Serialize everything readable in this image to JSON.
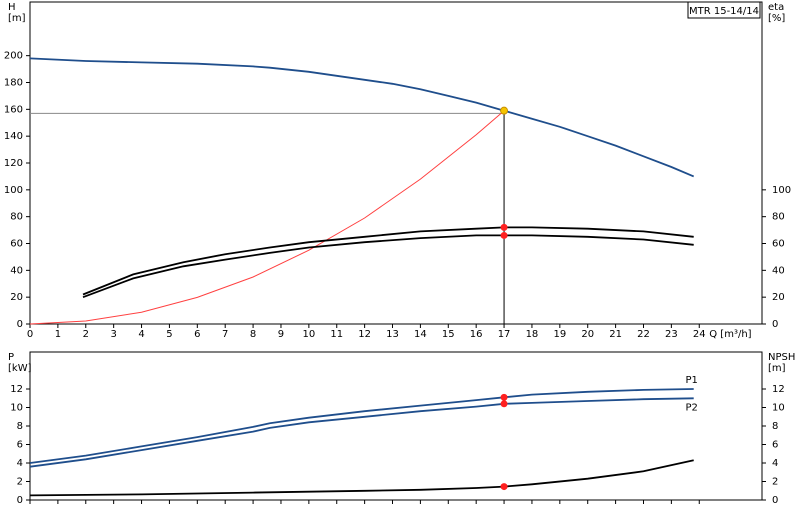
{
  "chart_data": [
    {
      "type": "line",
      "title": "MTR 15-14/14",
      "y_label": "H",
      "y_unit": "[m]",
      "y2_label": "eta",
      "y2_unit": "[%]",
      "x_label": "Q [m³/h]",
      "xlim": [
        0,
        26.25
      ],
      "xticks": [
        0,
        1,
        2,
        3,
        4,
        5,
        6,
        7,
        8,
        9,
        10,
        11,
        12,
        13,
        14,
        15,
        16,
        17,
        18,
        19,
        20,
        21,
        22,
        23,
        24
      ],
      "ylim": [
        0,
        240
      ],
      "yticks": [
        0,
        20,
        40,
        60,
        80,
        100,
        120,
        140,
        160,
        180,
        200
      ],
      "y2lim": [
        0,
        240
      ],
      "y2ticks": [
        0,
        20,
        40,
        60,
        80,
        100
      ],
      "series": [
        {
          "color": "#1f4e8c",
          "x": [
            0,
            2,
            4,
            6,
            8,
            8.6,
            10,
            11,
            12,
            13,
            14,
            15,
            16,
            17,
            18,
            19,
            20,
            21,
            22,
            23,
            23.8
          ],
          "values": [
            198,
            196,
            195,
            194,
            192,
            191,
            188,
            185,
            182,
            179,
            175,
            170,
            165,
            159,
            153,
            147,
            140,
            133,
            125,
            117,
            110
          ]
        },
        {
          "color": "#ff4040",
          "x": [
            0,
            2,
            4,
            6,
            8,
            10,
            12,
            14,
            16,
            17
          ],
          "values": [
            0,
            2.2,
            8.8,
            19.8,
            35,
            55,
            79,
            108,
            141,
            159
          ]
        },
        {
          "color": "#000000",
          "axis": "y2",
          "x": [
            1.9,
            3.7,
            5.5,
            7,
            8.6,
            10,
            12,
            14,
            16,
            17,
            18,
            20,
            22,
            23.8
          ],
          "values": [
            22,
            37,
            46,
            52,
            57,
            61,
            65,
            69,
            71,
            72,
            72,
            71,
            69,
            65
          ]
        },
        {
          "color": "#000000",
          "axis": "y2",
          "x": [
            1.9,
            3.7,
            5.5,
            7,
            8.6,
            10,
            12,
            14,
            16,
            17,
            18,
            20,
            22,
            23.8
          ],
          "values": [
            20,
            34,
            43,
            48,
            53,
            57,
            61,
            64,
            66,
            66,
            66,
            65,
            63,
            59
          ]
        }
      ],
      "points": [
        {
          "x": 17,
          "y": 159,
          "color": "#f5c400"
        },
        {
          "x": 17,
          "y": 72,
          "axis": "y2",
          "color": "#ff2020"
        },
        {
          "x": 17,
          "y": 66,
          "axis": "y2",
          "color": "#ff2020"
        }
      ],
      "vline": 17,
      "hline": 157
    },
    {
      "type": "line",
      "y_label": "P",
      "y_unit": "[kW]",
      "y2_label": "NPSH",
      "y2_unit": "[m]",
      "xlim": [
        0,
        26.25
      ],
      "ylim": [
        0,
        16
      ],
      "yticks": [
        0,
        2,
        4,
        6,
        8,
        10,
        12
      ],
      "y2lim": [
        0,
        16
      ],
      "y2ticks": [
        0,
        2,
        4,
        6,
        8,
        10,
        12
      ],
      "series": [
        {
          "name": "P1",
          "color": "#1f4e8c",
          "x": [
            0,
            2,
            4,
            6,
            8,
            8.6,
            10,
            12,
            14,
            16,
            17,
            18,
            20,
            22,
            23.8
          ],
          "values": [
            4,
            4.8,
            5.8,
            6.8,
            7.9,
            8.3,
            8.9,
            9.6,
            10.2,
            10.8,
            11.1,
            11.4,
            11.7,
            11.9,
            12
          ]
        },
        {
          "name": "P2",
          "color": "#1f4e8c",
          "x": [
            0,
            2,
            4,
            6,
            8,
            8.6,
            10,
            12,
            14,
            16,
            17,
            18,
            20,
            22,
            23.8
          ],
          "values": [
            3.6,
            4.4,
            5.4,
            6.4,
            7.4,
            7.8,
            8.4,
            9.0,
            9.6,
            10.1,
            10.4,
            10.5,
            10.7,
            10.9,
            11
          ]
        },
        {
          "color": "#000000",
          "axis": "y2",
          "x": [
            0,
            4,
            8,
            10,
            12,
            14,
            16,
            17,
            18,
            20,
            22,
            23.8
          ],
          "values": [
            0.5,
            0.6,
            0.8,
            0.9,
            1.0,
            1.1,
            1.3,
            1.45,
            1.7,
            2.3,
            3.1,
            4.3
          ]
        }
      ],
      "points": [
        {
          "x": 17,
          "y": 11.1,
          "color": "#ff2020"
        },
        {
          "x": 17,
          "y": 10.4,
          "color": "#ff2020"
        },
        {
          "x": 17,
          "y": 1.45,
          "axis": "y2",
          "color": "#ff2020"
        }
      ]
    }
  ]
}
